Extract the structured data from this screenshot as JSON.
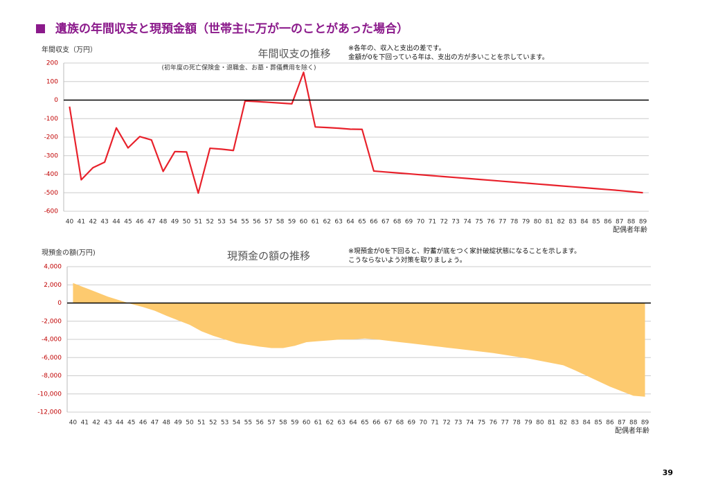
{
  "title": "遺族の年間収支と現預金額（世帯主に万が一のことがあった場合）",
  "page_number": "39",
  "chart_data": [
    {
      "type": "line",
      "title": "年間収支の推移",
      "subtitle": "(初年度の死亡保険金・退職金、お墓・葬儀費用を除く)",
      "ylabel": "年間収支（万円）",
      "xlabel": "配偶者年齢",
      "notes": [
        "※各年の、収入と支出の差です。",
        "金額が0を下回っている年は、支出の方が多いことを示しています。"
      ],
      "categories": [
        40,
        41,
        42,
        43,
        44,
        45,
        46,
        47,
        48,
        49,
        50,
        51,
        52,
        53,
        54,
        55,
        56,
        57,
        58,
        59,
        60,
        61,
        62,
        63,
        64,
        65,
        66,
        67,
        68,
        69,
        70,
        71,
        72,
        73,
        74,
        75,
        76,
        77,
        78,
        79,
        80,
        81,
        82,
        83,
        84,
        85,
        86,
        87,
        88,
        89
      ],
      "values": [
        -35,
        -430,
        -365,
        -335,
        -150,
        -258,
        -197,
        -215,
        -385,
        -278,
        -280,
        -502,
        -260,
        -265,
        -272,
        -5,
        -8,
        -12,
        -16,
        -20,
        150,
        -145,
        -148,
        -152,
        -157,
        -158,
        -383,
        -388,
        -393,
        -398,
        -403,
        -408,
        -413,
        -418,
        -423,
        -428,
        -433,
        -438,
        -443,
        -448,
        -453,
        -458,
        -463,
        -468,
        -473,
        -478,
        -483,
        -488,
        -494,
        -500
      ],
      "color": "#e8212b",
      "ylim": [
        -600,
        200
      ],
      "yticks": [
        -600,
        -500,
        -400,
        -300,
        -200,
        -100,
        0,
        100,
        200
      ],
      "grid": true
    },
    {
      "type": "area",
      "title": "現預金の額の推移",
      "ylabel": "現預金の額(万円)",
      "xlabel": "配偶者年齢",
      "notes": [
        "※現預金が0を下回ると、貯蓄が底をつく家計破綻状態になることを示します。",
        "こうならないよう対策を取りましょう。"
      ],
      "categories": [
        40,
        41,
        42,
        43,
        44,
        45,
        46,
        47,
        48,
        49,
        50,
        51,
        52,
        53,
        54,
        55,
        56,
        57,
        58,
        59,
        60,
        61,
        62,
        63,
        64,
        65,
        66,
        67,
        68,
        69,
        70,
        71,
        72,
        73,
        74,
        75,
        76,
        77,
        78,
        79,
        80,
        81,
        82,
        83,
        84,
        85,
        86,
        87,
        88,
        89
      ],
      "values": [
        2200,
        1700,
        1200,
        700,
        300,
        -100,
        -450,
        -850,
        -1400,
        -1900,
        -2400,
        -3100,
        -3600,
        -4000,
        -4400,
        -4600,
        -4800,
        -4950,
        -4950,
        -4700,
        -4300,
        -4200,
        -4100,
        -4000,
        -4000,
        -3900,
        -4000,
        -4150,
        -4300,
        -4450,
        -4600,
        -4750,
        -4900,
        -5050,
        -5200,
        -5350,
        -5500,
        -5700,
        -5900,
        -6100,
        -6350,
        -6600,
        -6850,
        -7400,
        -8000,
        -8600,
        -9200,
        -9700,
        -10200,
        -10300
      ],
      "color": "#fdca6f",
      "ylim": [
        -12000,
        4000
      ],
      "yticks": [
        {
          "value": -12000,
          "label": "-12,000"
        },
        {
          "value": -10000,
          "label": "-10,000"
        },
        {
          "value": -8000,
          "label": "-8,000"
        },
        {
          "value": -6000,
          "label": "-6,000"
        },
        {
          "value": -4000,
          "label": "-4,000"
        },
        {
          "value": -2000,
          "label": "-2,000"
        },
        0,
        {
          "value": 2000,
          "label": "2,000"
        },
        {
          "value": 4000,
          "label": "4,000"
        }
      ],
      "grid": true
    }
  ]
}
